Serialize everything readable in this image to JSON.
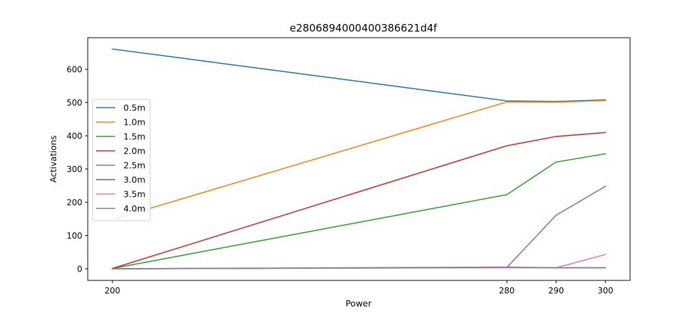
{
  "chart_data": {
    "type": "line",
    "title": "e2806894000400386621d4f",
    "xlabel": "Power",
    "ylabel": "Activations",
    "x": [
      200,
      280,
      290,
      300
    ],
    "xticks": [
      200,
      280,
      290,
      300
    ],
    "yticks": [
      0,
      100,
      200,
      300,
      400,
      500,
      600
    ],
    "xlim": [
      195,
      305
    ],
    "ylim": [
      -35,
      695
    ],
    "grid": false,
    "legend_position": "center-left",
    "series": [
      {
        "name": "0.5m",
        "color": "#1f77b4",
        "values": [
          661,
          505,
          503,
          508
        ]
      },
      {
        "name": "1.0m",
        "color": "#ff7f0e",
        "values": [
          148,
          502,
          501,
          506
        ]
      },
      {
        "name": "1.5m",
        "color": "#2ca02c",
        "values": [
          1,
          223,
          321,
          346
        ]
      },
      {
        "name": "2.0m",
        "color": "#d62728",
        "values": [
          1,
          370,
          398,
          410
        ]
      },
      {
        "name": "2.5m",
        "color": "#9467bd",
        "values": [
          0,
          4,
          161,
          248
        ]
      },
      {
        "name": "3.0m",
        "color": "#8c564b",
        "values": [
          0,
          4,
          3,
          3
        ]
      },
      {
        "name": "3.5m",
        "color": "#e377c2",
        "values": [
          0,
          3,
          3,
          43
        ]
      },
      {
        "name": "4.0m",
        "color": "#7f7f7f",
        "values": [
          0,
          5,
          3,
          3
        ]
      }
    ]
  }
}
